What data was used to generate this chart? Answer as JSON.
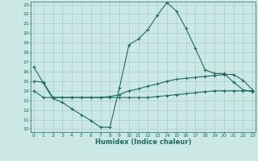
{
  "title": "",
  "xlabel": "Humidex (Indice chaleur)",
  "bg_color": "#cce8e5",
  "grid_color": "#aacfcc",
  "line_color": "#1e6b5e",
  "xlim": [
    0,
    23
  ],
  "ylim": [
    10,
    23
  ],
  "yticks": [
    10,
    11,
    12,
    13,
    14,
    15,
    16,
    17,
    18,
    19,
    20,
    21,
    22,
    23
  ],
  "xticks": [
    0,
    1,
    2,
    3,
    4,
    5,
    6,
    7,
    8,
    9,
    10,
    11,
    12,
    13,
    14,
    15,
    16,
    17,
    18,
    19,
    20,
    21,
    22,
    23
  ],
  "x": [
    0,
    1,
    2,
    3,
    4,
    5,
    6,
    7,
    8,
    9,
    10,
    11,
    12,
    13,
    14,
    15,
    16,
    17,
    18,
    19,
    20,
    21,
    22,
    23
  ],
  "line_top": [
    16.5,
    14.8,
    13.2,
    12.8,
    12.1,
    11.5,
    10.9,
    10.2,
    10.2,
    14.3,
    18.8,
    19.4,
    20.4,
    21.9,
    23.2,
    22.3,
    20.5,
    18.4,
    16.2,
    15.8,
    15.8,
    14.9,
    14.1,
    13.9
  ],
  "line_mid": [
    15.0,
    14.9,
    13.3,
    13.3,
    13.3,
    13.3,
    13.3,
    13.3,
    13.4,
    13.6,
    14.0,
    14.2,
    14.5,
    14.7,
    15.0,
    15.2,
    15.3,
    15.4,
    15.5,
    15.6,
    15.7,
    15.7,
    15.1,
    14.1
  ],
  "line_bot": [
    14.0,
    13.3,
    13.3,
    13.3,
    13.3,
    13.3,
    13.3,
    13.3,
    13.3,
    13.3,
    13.3,
    13.3,
    13.3,
    13.4,
    13.5,
    13.6,
    13.7,
    13.8,
    13.9,
    14.0,
    14.0,
    14.0,
    14.0,
    14.0
  ]
}
